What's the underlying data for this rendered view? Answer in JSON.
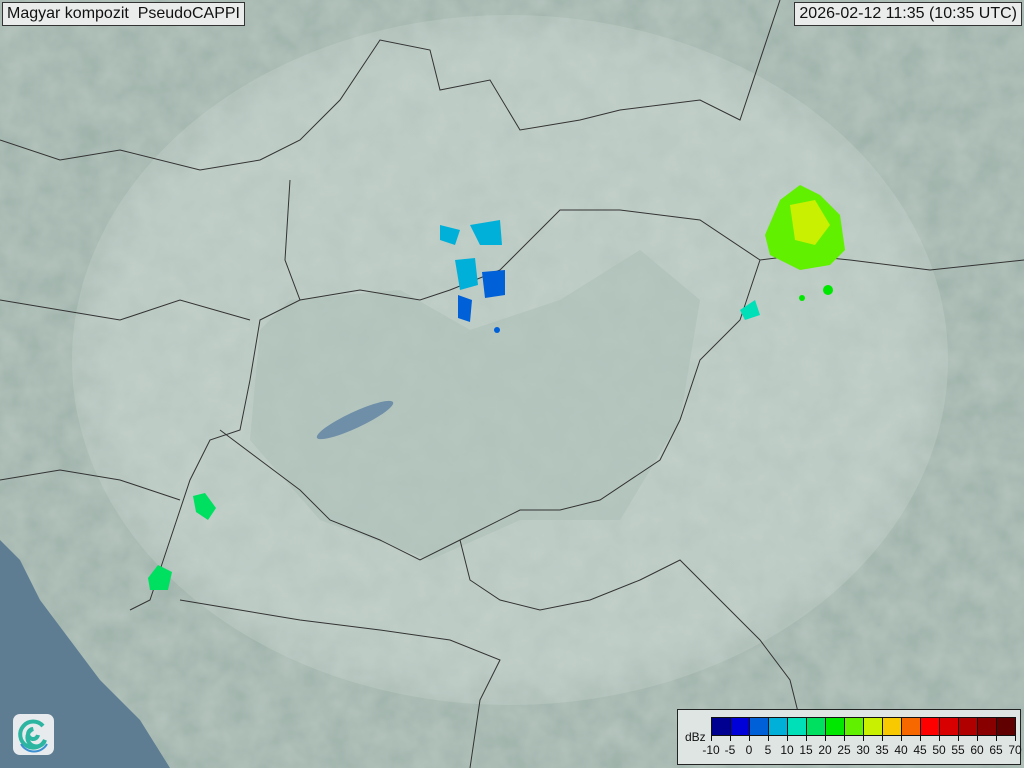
{
  "header": {
    "title": "Magyar kompozit  PseudoCAPPI",
    "timestamp": "2026-02-12 11:35 (10:35 UTC)"
  },
  "legend": {
    "unit": "dBz",
    "ticks": [
      "-10",
      "-5",
      "0",
      "5",
      "10",
      "15",
      "20",
      "25",
      "30",
      "35",
      "40",
      "45",
      "50",
      "55",
      "60",
      "65",
      "70"
    ],
    "colors": [
      "#000090",
      "#0000d8",
      "#0060d8",
      "#00b0d8",
      "#00e0b8",
      "#00e060",
      "#00e800",
      "#60f000",
      "#c8f000",
      "#f8c800",
      "#f86800",
      "#ff0000",
      "#d80000",
      "#b00000",
      "#880000",
      "#600000"
    ]
  },
  "logo": {
    "icon": "swirl-logo-icon"
  },
  "map": {
    "land_color": "#9fb3ab",
    "sea_color": "#5f7d92",
    "coverage_color": "#c9d6d0"
  }
}
